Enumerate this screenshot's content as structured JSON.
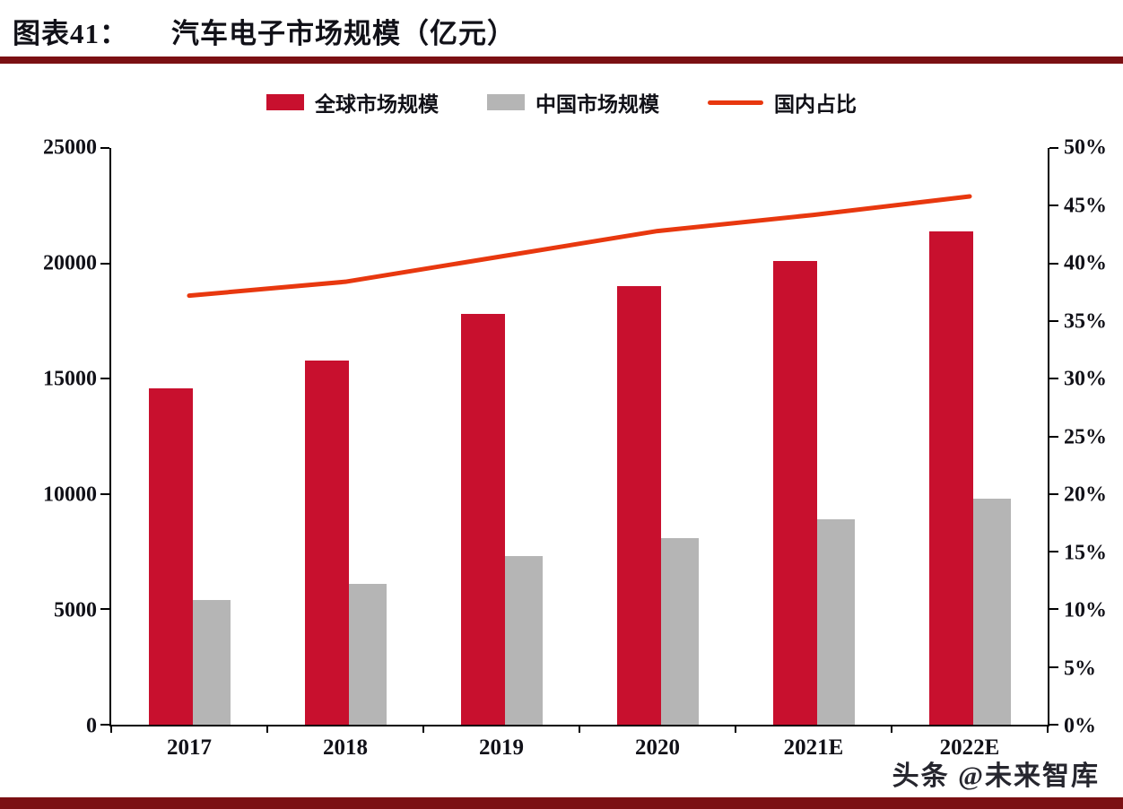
{
  "header": {
    "label": "图表41：",
    "title": "汽车电子市场规模（亿元）"
  },
  "watermark": "头条 @未来智库",
  "colors": {
    "bar_global": "#c8102e",
    "bar_china": "#b5b5b5",
    "line": "#e8380f",
    "rule": "#7b1013"
  },
  "chart_data": {
    "type": "bar+line",
    "title": "汽车电子市场规模（亿元）",
    "categories": [
      "2017",
      "2018",
      "2019",
      "2020",
      "2021E",
      "2022E"
    ],
    "series": [
      {
        "name": "全球市场规模",
        "type": "bar",
        "axis": "left",
        "values": [
          14600,
          15800,
          17800,
          19000,
          20100,
          21400
        ]
      },
      {
        "name": "中国市场规模",
        "type": "bar",
        "axis": "left",
        "values": [
          5400,
          6100,
          7300,
          8100,
          8900,
          9800
        ]
      },
      {
        "name": "国内占比",
        "type": "line",
        "axis": "right",
        "values_pct": [
          37.2,
          38.4,
          40.6,
          42.8,
          44.2,
          45.8
        ]
      }
    ],
    "left_axis": {
      "min": 0,
      "max": 25000,
      "ticks": [
        0,
        5000,
        10000,
        15000,
        20000,
        25000
      ]
    },
    "right_axis": {
      "min": 0,
      "max": 50,
      "ticks": [
        "0%",
        "5%",
        "10%",
        "15%",
        "20%",
        "25%",
        "30%",
        "35%",
        "40%",
        "45%",
        "50%"
      ]
    },
    "legend_position": "top",
    "grid": false
  }
}
